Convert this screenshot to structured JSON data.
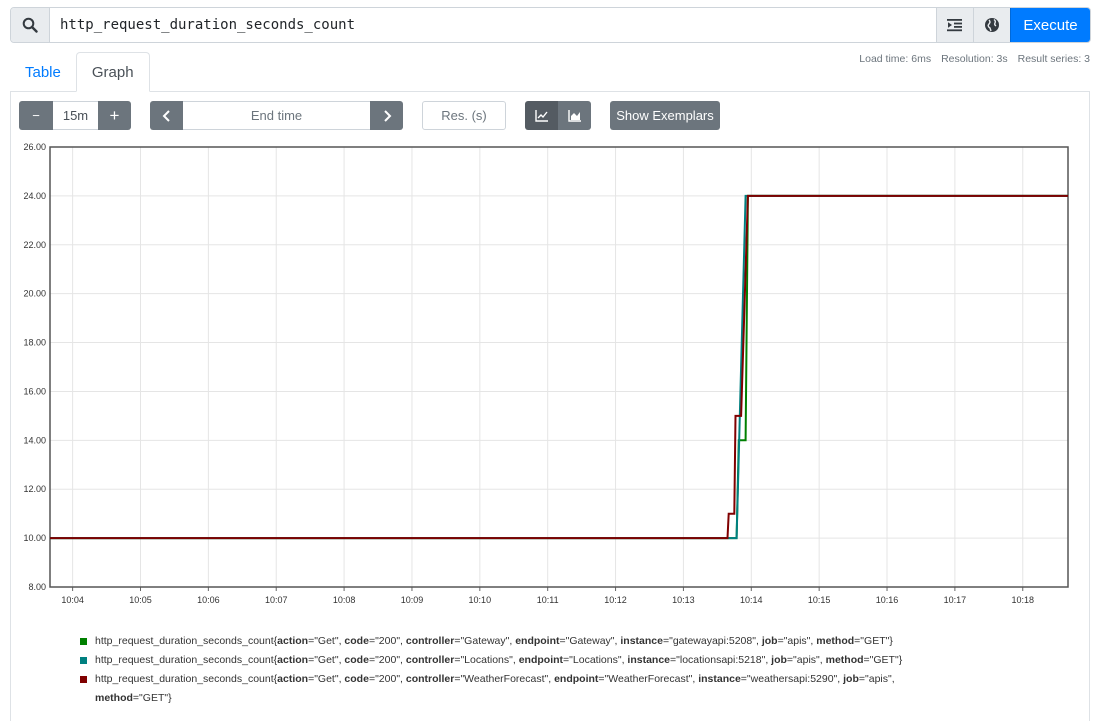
{
  "query": {
    "expression": "http_request_duration_seconds_count",
    "execute_label": "Execute"
  },
  "stats": {
    "load_time": "Load time: 6ms",
    "resolution": "Resolution: 3s",
    "result_series": "Result series: 3"
  },
  "tabs": [
    {
      "label": "Table",
      "active": false
    },
    {
      "label": "Graph",
      "active": true
    }
  ],
  "controls": {
    "minus": "−",
    "range": "15m",
    "plus": "+",
    "prev": "‹",
    "end_time_placeholder": "End time",
    "next": "›",
    "res_placeholder": "Res. (s)",
    "line_icon": "line-chart-icon",
    "stacked_icon": "stacked-chart-icon",
    "exemplars": "Show Exemplars"
  },
  "chart_data": {
    "type": "line",
    "ylim": [
      8,
      26
    ],
    "y_ticks": [
      8,
      10,
      12,
      14,
      16,
      18,
      20,
      22,
      24,
      26
    ],
    "y_tick_labels": [
      "8.00",
      "10.00",
      "12.00",
      "14.00",
      "16.00",
      "18.00",
      "20.00",
      "22.00",
      "24.00",
      "26.00"
    ],
    "xlim": [
      "10:03:40",
      "10:18:40"
    ],
    "x_ticks": [
      "10:04",
      "10:05",
      "10:06",
      "10:07",
      "10:08",
      "10:09",
      "10:10",
      "10:11",
      "10:12",
      "10:13",
      "10:14",
      "10:15",
      "10:16",
      "10:17",
      "10:18"
    ],
    "grid": true,
    "series": [
      {
        "name": "http_request_duration_seconds_count{action=\"Get\", code=\"200\", controller=\"Gateway\", endpoint=\"Gateway\", instance=\"gatewayapi:5208\", job=\"apis\", method=\"GET\"}",
        "color": "#008000",
        "points": [
          [
            "10:03:40",
            10
          ],
          [
            "10:13:40",
            10
          ],
          [
            "10:13:47",
            10
          ],
          [
            "10:13:49",
            14
          ],
          [
            "10:13:55",
            14
          ],
          [
            "10:13:57",
            24
          ],
          [
            "10:18:40",
            24
          ]
        ]
      },
      {
        "name": "http_request_duration_seconds_count{action=\"Get\", code=\"200\", controller=\"Locations\", endpoint=\"Locations\", instance=\"locationsapi:5218\", job=\"apis\", method=\"GET\"}",
        "color": "#008080",
        "points": [
          [
            "10:03:40",
            10
          ],
          [
            "10:13:45",
            10
          ],
          [
            "10:13:47",
            10
          ],
          [
            "10:13:55",
            24
          ],
          [
            "10:18:40",
            24
          ]
        ]
      },
      {
        "name": "http_request_duration_seconds_count{action=\"Get\", code=\"200\", controller=\"WeatherForecast\", endpoint=\"WeatherForecast\", instance=\"weathersapi:5290\", job=\"apis\", method=\"GET\"}",
        "color": "#800000",
        "points": [
          [
            "10:03:40",
            10
          ],
          [
            "10:13:39",
            10
          ],
          [
            "10:13:40",
            11
          ],
          [
            "10:13:45",
            11
          ],
          [
            "10:13:46",
            15
          ],
          [
            "10:13:51",
            15
          ],
          [
            "10:13:57",
            24
          ],
          [
            "10:18:40",
            24
          ]
        ]
      }
    ]
  },
  "legend": [
    {
      "color": "#008000",
      "metric": "http_request_duration_seconds_count",
      "labels": [
        [
          "action",
          "Get"
        ],
        [
          "code",
          "200"
        ],
        [
          "controller",
          "Gateway"
        ],
        [
          "endpoint",
          "Gateway"
        ],
        [
          "instance",
          "gatewayapi:5208"
        ],
        [
          "job",
          "apis"
        ],
        [
          "method",
          "GET"
        ]
      ]
    },
    {
      "color": "#008080",
      "metric": "http_request_duration_seconds_count",
      "labels": [
        [
          "action",
          "Get"
        ],
        [
          "code",
          "200"
        ],
        [
          "controller",
          "Locations"
        ],
        [
          "endpoint",
          "Locations"
        ],
        [
          "instance",
          "locationsapi:5218"
        ],
        [
          "job",
          "apis"
        ],
        [
          "method",
          "GET"
        ]
      ]
    },
    {
      "color": "#800000",
      "metric": "http_request_duration_seconds_count",
      "labels": [
        [
          "action",
          "Get"
        ],
        [
          "code",
          "200"
        ],
        [
          "controller",
          "WeatherForecast"
        ],
        [
          "endpoint",
          "WeatherForecast"
        ],
        [
          "instance",
          "weathersapi:5290"
        ],
        [
          "job",
          "apis"
        ],
        [
          "method",
          "GET"
        ]
      ]
    }
  ]
}
